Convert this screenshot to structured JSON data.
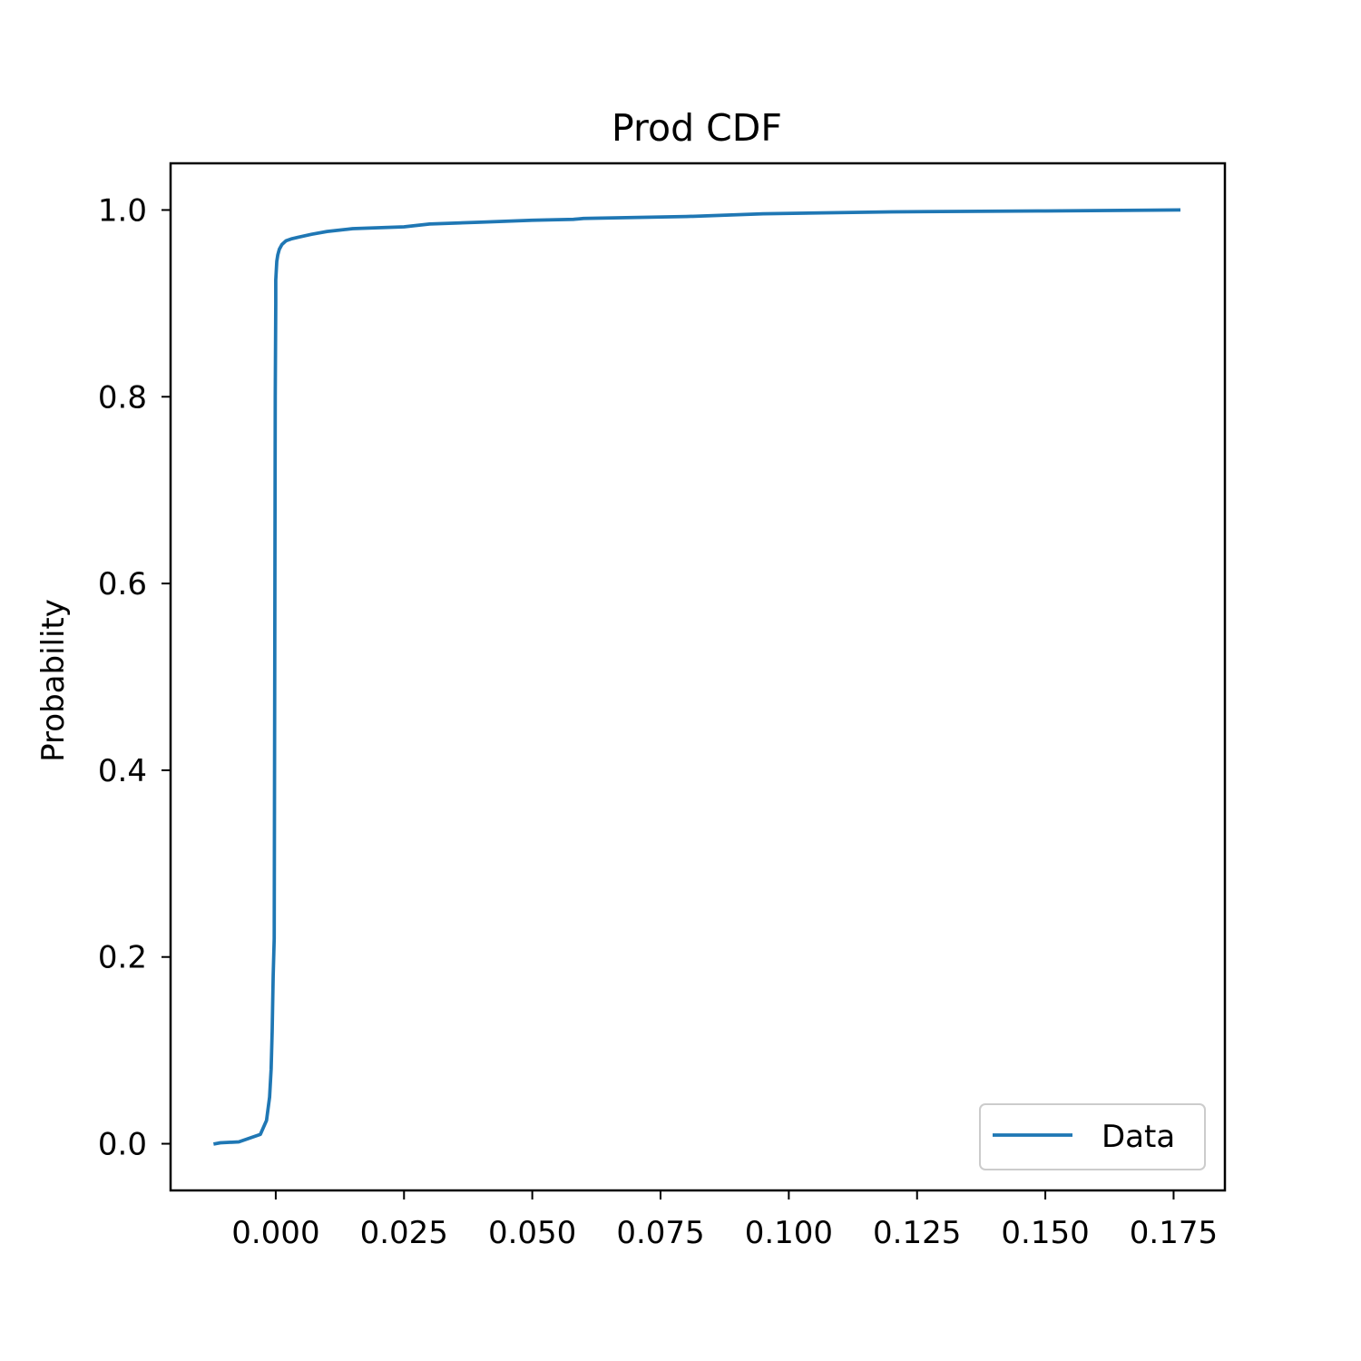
{
  "chart_data": {
    "type": "line",
    "title": "Prod CDF",
    "xlabel": "",
    "ylabel": "Probability",
    "xlim": [
      -0.0205,
      0.185
    ],
    "ylim": [
      -0.05,
      1.05
    ],
    "x_ticks": [
      0.0,
      0.025,
      0.05,
      0.075,
      0.1,
      0.125,
      0.15,
      0.175
    ],
    "x_tick_labels": [
      "0.000",
      "0.025",
      "0.050",
      "0.075",
      "0.100",
      "0.125",
      "0.150",
      "0.175"
    ],
    "y_ticks": [
      0.0,
      0.2,
      0.4,
      0.6,
      0.8,
      1.0
    ],
    "y_tick_labels": [
      "0.0",
      "0.2",
      "0.4",
      "0.6",
      "0.8",
      "1.0"
    ],
    "grid": false,
    "legend_position": "lower right",
    "series": [
      {
        "name": "Data",
        "color": "#1f77b4",
        "x": [
          -0.0118,
          -0.0108,
          -0.0072,
          -0.003,
          -0.0018,
          -0.0012,
          -0.0009,
          -0.0007,
          -0.0005,
          -0.0003,
          -0.0002,
          -0.0001,
          0.0,
          0.0,
          0.0001,
          0.0002,
          0.0004,
          0.0007,
          0.0012,
          0.002,
          0.003,
          0.0045,
          0.007,
          0.01,
          0.015,
          0.02,
          0.025,
          0.03,
          0.04,
          0.05,
          0.058,
          0.06,
          0.08,
          0.095,
          0.12,
          0.15,
          0.176
        ],
        "y": [
          0.0,
          0.001,
          0.002,
          0.01,
          0.025,
          0.05,
          0.08,
          0.12,
          0.18,
          0.22,
          0.5,
          0.8,
          0.9,
          0.925,
          0.935,
          0.945,
          0.952,
          0.958,
          0.963,
          0.967,
          0.969,
          0.971,
          0.974,
          0.977,
          0.98,
          0.981,
          0.982,
          0.985,
          0.987,
          0.989,
          0.99,
          0.991,
          0.993,
          0.996,
          0.998,
          0.999,
          1.0
        ]
      }
    ]
  }
}
